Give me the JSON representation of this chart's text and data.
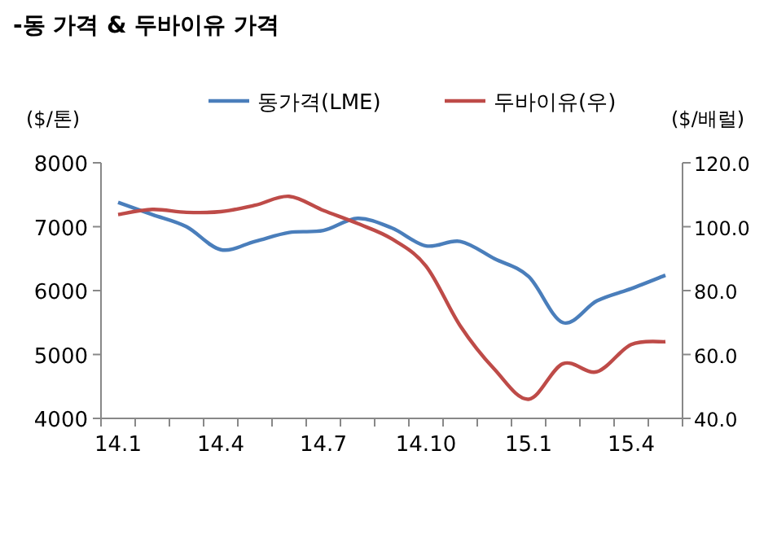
{
  "chart_data": {
    "type": "line",
    "title": "-동 가격 & 두바이유 가격",
    "ylabel": "($/톤)",
    "y2label": "($/배럴)",
    "categories": [
      "14.1",
      null,
      null,
      "14.4",
      null,
      null,
      "14.7",
      null,
      null,
      "14.10",
      null,
      null,
      "15.1",
      null,
      null,
      "15.4",
      null
    ],
    "series": [
      {
        "name": "동가격(LME)",
        "color": "#4a7ebb",
        "values": [
          7380,
          7190,
          7000,
          6640,
          6770,
          6910,
          6940,
          7130,
          6980,
          6700,
          6770,
          6500,
          6220,
          5500,
          5840,
          6030,
          6240
        ]
      },
      {
        "name": "두바이유(우)",
        "color": "#be4b48",
        "axis": "y2",
        "values": [
          103.8,
          105.4,
          104.5,
          104.7,
          106.7,
          109.5,
          105.1,
          101,
          96.2,
          87.7,
          69,
          55.4,
          46,
          57.1,
          54.6,
          63.1,
          64
        ]
      }
    ],
    "ylim": [
      4000,
      8000
    ],
    "yticks": [
      4000,
      5000,
      6000,
      7000,
      8000
    ],
    "y2lim": [
      40,
      120
    ],
    "y2ticks": [
      {
        "value": 40,
        "label": "40.0"
      },
      {
        "value": 60,
        "label": "60.0"
      },
      {
        "value": 80,
        "label": "80.0"
      },
      {
        "value": 100,
        "label": "100.0"
      },
      {
        "value": 120,
        "label": "120.0"
      }
    ],
    "legend": "top",
    "grid": false,
    "marker": "none",
    "line_style": "solid"
  }
}
